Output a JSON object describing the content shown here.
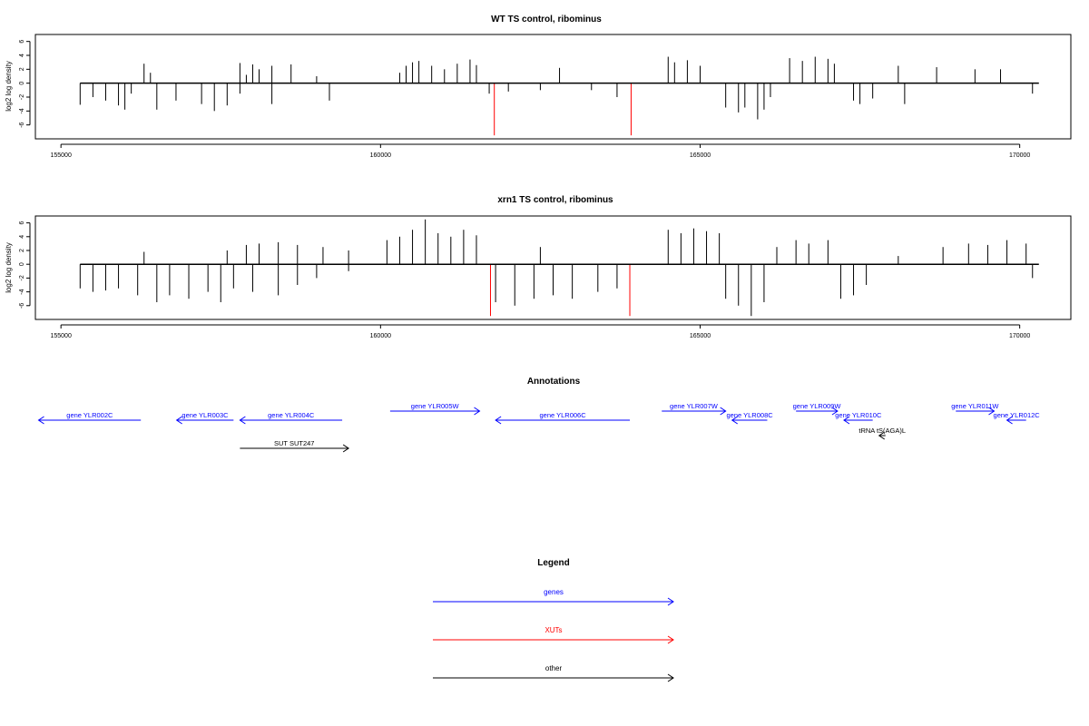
{
  "colors": {
    "axis": "#000000",
    "gene": "#0000ff",
    "xut": "#ff0000",
    "other": "#000000",
    "bar": "#000000",
    "highlight": "#ff0000"
  },
  "chart_data": [
    {
      "type": "bar",
      "title": "WT TS control, ribominus",
      "ylabel": "log2 log density",
      "xlim": [
        154600,
        170800
      ],
      "ylim": [
        -8,
        7
      ],
      "xticks": [
        155000,
        160000,
        165000,
        170000
      ],
      "yticks": [
        -6,
        -4,
        -2,
        0,
        2,
        4,
        6
      ],
      "x_ticklabels": [
        "155000",
        "160000",
        "165000",
        "170000"
      ],
      "y_ticklabels": [
        "-6",
        "-4",
        "-2",
        "0",
        "2",
        "4",
        "6"
      ],
      "baseline": 0,
      "x_range": [
        155300,
        170300
      ],
      "series": [
        {
          "strand": "+",
          "values": [
            {
              "x": 156300,
              "y": 2.8
            },
            {
              "x": 156400,
              "y": 1.5
            },
            {
              "x": 157800,
              "y": 2.9
            },
            {
              "x": 157900,
              "y": 1.2
            },
            {
              "x": 158000,
              "y": 2.7
            },
            {
              "x": 158100,
              "y": 2.0
            },
            {
              "x": 158300,
              "y": 2.5
            },
            {
              "x": 158600,
              "y": 2.7
            },
            {
              "x": 159000,
              "y": 1.0
            },
            {
              "x": 160300,
              "y": 1.5
            },
            {
              "x": 160400,
              "y": 2.5
            },
            {
              "x": 160500,
              "y": 3.0
            },
            {
              "x": 160600,
              "y": 3.2
            },
            {
              "x": 160800,
              "y": 2.5
            },
            {
              "x": 161000,
              "y": 2.0
            },
            {
              "x": 161200,
              "y": 2.8
            },
            {
              "x": 161400,
              "y": 3.4
            },
            {
              "x": 161500,
              "y": 2.6
            },
            {
              "x": 162800,
              "y": 2.2
            },
            {
              "x": 164500,
              "y": 3.8
            },
            {
              "x": 164600,
              "y": 3.0
            },
            {
              "x": 164800,
              "y": 3.3
            },
            {
              "x": 165000,
              "y": 2.5
            },
            {
              "x": 166400,
              "y": 3.6
            },
            {
              "x": 166600,
              "y": 3.2
            },
            {
              "x": 166800,
              "y": 3.8
            },
            {
              "x": 167000,
              "y": 3.5
            },
            {
              "x": 167100,
              "y": 2.8
            },
            {
              "x": 168100,
              "y": 2.5
            },
            {
              "x": 168700,
              "y": 2.3
            },
            {
              "x": 169300,
              "y": 2.0
            },
            {
              "x": 169700,
              "y": 2.0
            }
          ]
        },
        {
          "strand": "-",
          "values": [
            {
              "x": 155300,
              "y": -3.1
            },
            {
              "x": 155500,
              "y": -2.0
            },
            {
              "x": 155700,
              "y": -2.5
            },
            {
              "x": 155900,
              "y": -3.2
            },
            {
              "x": 156000,
              "y": -3.8
            },
            {
              "x": 156100,
              "y": -1.5
            },
            {
              "x": 156500,
              "y": -3.8
            },
            {
              "x": 156800,
              "y": -2.5
            },
            {
              "x": 157200,
              "y": -3.0
            },
            {
              "x": 157400,
              "y": -4.0
            },
            {
              "x": 157600,
              "y": -3.2
            },
            {
              "x": 157800,
              "y": -1.5
            },
            {
              "x": 158300,
              "y": -3.0
            },
            {
              "x": 159200,
              "y": -2.5
            },
            {
              "x": 161700,
              "y": -1.5
            },
            {
              "x": 162000,
              "y": -1.2
            },
            {
              "x": 162500,
              "y": -1.0
            },
            {
              "x": 163300,
              "y": -1.0
            },
            {
              "x": 163700,
              "y": -2.0
            },
            {
              "x": 165400,
              "y": -3.5
            },
            {
              "x": 165600,
              "y": -4.2
            },
            {
              "x": 165700,
              "y": -3.5
            },
            {
              "x": 165900,
              "y": -5.2
            },
            {
              "x": 166000,
              "y": -3.8
            },
            {
              "x": 166100,
              "y": -2.0
            },
            {
              "x": 167400,
              "y": -2.5
            },
            {
              "x": 167500,
              "y": -3.0
            },
            {
              "x": 167700,
              "y": -2.2
            },
            {
              "x": 168200,
              "y": -3.0
            },
            {
              "x": 170200,
              "y": -1.5
            }
          ]
        },
        {
          "name": "XUTs",
          "values": [
            {
              "x": 161780,
              "y": -7.5
            },
            {
              "x": 163920,
              "y": -7.5
            }
          ]
        }
      ]
    },
    {
      "type": "bar",
      "title": "xrn1 TS control, ribominus",
      "ylabel": "log2 log density",
      "xlim": [
        154600,
        170800
      ],
      "ylim": [
        -8,
        7
      ],
      "xticks": [
        155000,
        160000,
        165000,
        170000
      ],
      "yticks": [
        -6,
        -4,
        -2,
        0,
        2,
        4,
        6
      ],
      "x_ticklabels": [
        "155000",
        "160000",
        "165000",
        "170000"
      ],
      "y_ticklabels": [
        "-6",
        "-4",
        "-2",
        "0",
        "2",
        "4",
        "6"
      ],
      "baseline": 0,
      "x_range": [
        155300,
        170300
      ],
      "series": [
        {
          "strand": "+",
          "values": [
            {
              "x": 156300,
              "y": 1.8
            },
            {
              "x": 157600,
              "y": 2.0
            },
            {
              "x": 157900,
              "y": 2.8
            },
            {
              "x": 158100,
              "y": 3.0
            },
            {
              "x": 158400,
              "y": 3.2
            },
            {
              "x": 158700,
              "y": 2.8
            },
            {
              "x": 159100,
              "y": 2.5
            },
            {
              "x": 159500,
              "y": 2.0
            },
            {
              "x": 160100,
              "y": 3.5
            },
            {
              "x": 160300,
              "y": 4.0
            },
            {
              "x": 160500,
              "y": 5.0
            },
            {
              "x": 160700,
              "y": 6.5
            },
            {
              "x": 160900,
              "y": 4.5
            },
            {
              "x": 161100,
              "y": 4.0
            },
            {
              "x": 161300,
              "y": 5.0
            },
            {
              "x": 161500,
              "y": 4.2
            },
            {
              "x": 162500,
              "y": 2.5
            },
            {
              "x": 164500,
              "y": 5.0
            },
            {
              "x": 164700,
              "y": 4.5
            },
            {
              "x": 164900,
              "y": 5.2
            },
            {
              "x": 165100,
              "y": 4.8
            },
            {
              "x": 165300,
              "y": 4.5
            },
            {
              "x": 166200,
              "y": 2.5
            },
            {
              "x": 166500,
              "y": 3.5
            },
            {
              "x": 166700,
              "y": 3.0
            },
            {
              "x": 167000,
              "y": 3.5
            },
            {
              "x": 168100,
              "y": 1.2
            },
            {
              "x": 168800,
              "y": 2.5
            },
            {
              "x": 169200,
              "y": 3.0
            },
            {
              "x": 169500,
              "y": 2.8
            },
            {
              "x": 169800,
              "y": 3.5
            },
            {
              "x": 170100,
              "y": 3.0
            }
          ]
        },
        {
          "strand": "-",
          "values": [
            {
              "x": 155300,
              "y": -3.5
            },
            {
              "x": 155500,
              "y": -4.0
            },
            {
              "x": 155700,
              "y": -3.8
            },
            {
              "x": 155900,
              "y": -3.5
            },
            {
              "x": 156200,
              "y": -4.5
            },
            {
              "x": 156500,
              "y": -5.5
            },
            {
              "x": 156700,
              "y": -4.5
            },
            {
              "x": 157000,
              "y": -5.0
            },
            {
              "x": 157300,
              "y": -4.0
            },
            {
              "x": 157500,
              "y": -5.5
            },
            {
              "x": 157700,
              "y": -3.5
            },
            {
              "x": 158000,
              "y": -4.0
            },
            {
              "x": 158400,
              "y": -4.5
            },
            {
              "x": 158700,
              "y": -3.0
            },
            {
              "x": 159000,
              "y": -2.0
            },
            {
              "x": 159500,
              "y": -1.0
            },
            {
              "x": 161800,
              "y": -5.5
            },
            {
              "x": 162100,
              "y": -6.0
            },
            {
              "x": 162400,
              "y": -5.0
            },
            {
              "x": 162700,
              "y": -4.5
            },
            {
              "x": 163000,
              "y": -5.0
            },
            {
              "x": 163400,
              "y": -4.0
            },
            {
              "x": 163700,
              "y": -3.5
            },
            {
              "x": 165400,
              "y": -5.0
            },
            {
              "x": 165600,
              "y": -6.0
            },
            {
              "x": 165800,
              "y": -7.5
            },
            {
              "x": 166000,
              "y": -5.5
            },
            {
              "x": 167200,
              "y": -5.0
            },
            {
              "x": 167400,
              "y": -4.5
            },
            {
              "x": 167600,
              "y": -3.0
            },
            {
              "x": 170200,
              "y": -2.0
            }
          ]
        },
        {
          "name": "XUTs",
          "values": [
            {
              "x": 161720,
              "y": -7.5
            },
            {
              "x": 163900,
              "y": -7.5
            }
          ]
        }
      ]
    },
    {
      "type": "annotation_track",
      "title": "Annotations",
      "features": [
        {
          "label": "gene YLR002C",
          "start": 154650,
          "end": 156250,
          "strand": "-",
          "kind": "gene",
          "row": 1
        },
        {
          "label": "gene YLR003C",
          "start": 156810,
          "end": 157700,
          "strand": "-",
          "kind": "gene",
          "row": 1
        },
        {
          "label": "gene YLR004C",
          "start": 157800,
          "end": 159400,
          "strand": "-",
          "kind": "gene",
          "row": 1
        },
        {
          "label": "gene YLR005W",
          "start": 160150,
          "end": 161550,
          "strand": "+",
          "kind": "gene",
          "row": 0
        },
        {
          "label": "gene YLR006C",
          "start": 161800,
          "end": 163900,
          "strand": "-",
          "kind": "gene",
          "row": 1
        },
        {
          "label": "gene YLR007W",
          "start": 164400,
          "end": 165400,
          "strand": "+",
          "kind": "gene",
          "row": 0
        },
        {
          "label": "gene YLR008C",
          "start": 165500,
          "end": 166050,
          "strand": "-",
          "kind": "gene",
          "row": 1
        },
        {
          "label": "gene YLR009W",
          "start": 166500,
          "end": 167150,
          "strand": "+",
          "kind": "gene",
          "row": 0
        },
        {
          "label": "gene YLR010C",
          "start": 167250,
          "end": 167700,
          "strand": "-",
          "kind": "gene",
          "row": 1
        },
        {
          "label": "gene YLR011W",
          "start": 169000,
          "end": 169600,
          "strand": "+",
          "kind": "gene",
          "row": 0
        },
        {
          "label": "gene YLR012C",
          "start": 169800,
          "end": 170100,
          "strand": "-",
          "kind": "gene",
          "row": 1
        },
        {
          "label": "SUT SUT247",
          "start": 157800,
          "end": 159500,
          "strand": "+",
          "kind": "other",
          "row": 3
        },
        {
          "label": "tRNA tS(AGA)L",
          "start": 167800,
          "end": 167900,
          "strand": "-",
          "kind": "other",
          "row": 2
        }
      ]
    },
    {
      "type": "legend",
      "title": "Legend",
      "entries": [
        {
          "label": "genes",
          "kind": "gene"
        },
        {
          "label": "XUTs",
          "kind": "xut"
        },
        {
          "label": "other",
          "kind": "other"
        }
      ]
    }
  ]
}
